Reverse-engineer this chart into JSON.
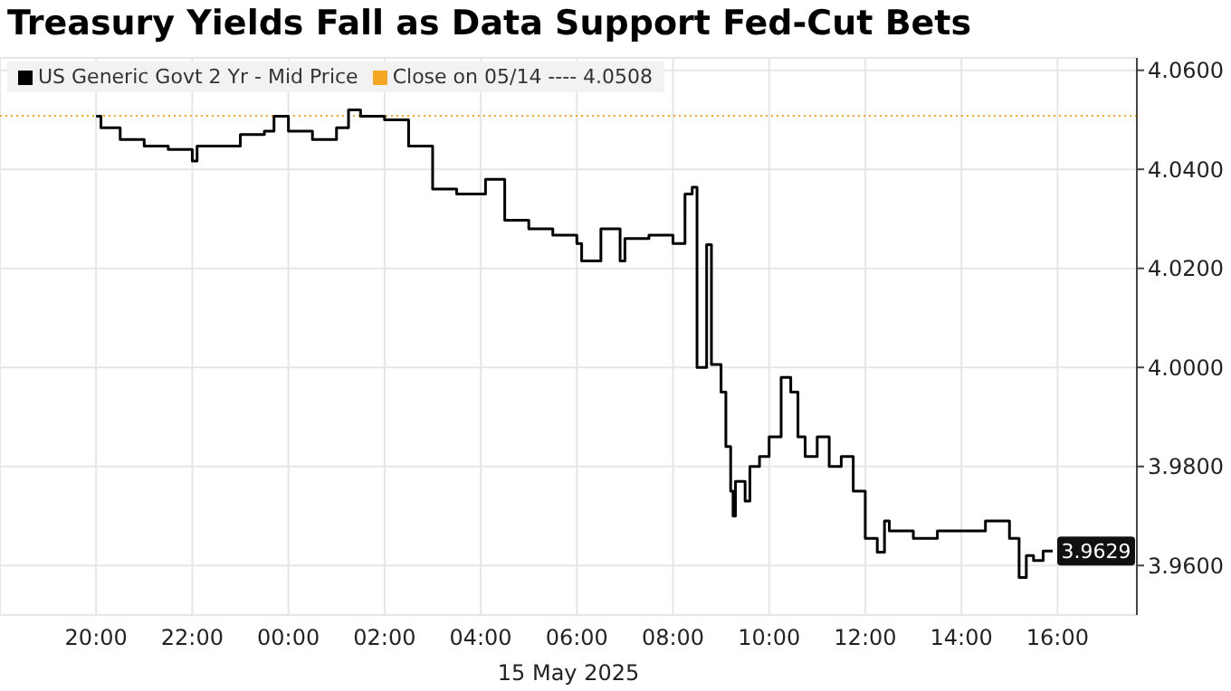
{
  "chart_data": {
    "type": "step",
    "title": "Treasury Yields Fall as Data Support Fed-Cut Bets",
    "xlabel": "15 May 2025",
    "x": [
      "2025-05-14T20:00",
      "2025-05-14T20:06",
      "2025-05-14T20:30",
      "2025-05-14T21:00",
      "2025-05-14T21:30",
      "2025-05-14T22:00",
      "2025-05-14T22:06",
      "2025-05-14T22:30",
      "2025-05-14T23:00",
      "2025-05-14T23:30",
      "2025-05-14T23:42",
      "2025-05-15T00:00",
      "2025-05-15T00:30",
      "2025-05-15T01:00",
      "2025-05-15T01:15",
      "2025-05-15T01:30",
      "2025-05-15T02:00",
      "2025-05-15T02:30",
      "2025-05-15T03:00",
      "2025-05-15T03:30",
      "2025-05-15T04:00",
      "2025-05-15T04:06",
      "2025-05-15T04:30",
      "2025-05-15T05:00",
      "2025-05-15T05:30",
      "2025-05-15T06:00",
      "2025-05-15T06:06",
      "2025-05-15T06:30",
      "2025-05-15T06:54",
      "2025-05-15T07:00",
      "2025-05-15T07:30",
      "2025-05-15T08:00",
      "2025-05-15T08:15",
      "2025-05-15T08:24",
      "2025-05-15T08:30",
      "2025-05-15T08:42",
      "2025-05-15T08:48",
      "2025-05-15T09:00",
      "2025-05-15T09:06",
      "2025-05-15T09:12",
      "2025-05-15T09:15",
      "2025-05-15T09:18",
      "2025-05-15T09:30",
      "2025-05-15T09:36",
      "2025-05-15T09:48",
      "2025-05-15T10:00",
      "2025-05-15T10:15",
      "2025-05-15T10:27",
      "2025-05-15T10:36",
      "2025-05-15T10:45",
      "2025-05-15T11:00",
      "2025-05-15T11:15",
      "2025-05-15T11:30",
      "2025-05-15T11:45",
      "2025-05-15T12:00",
      "2025-05-15T12:15",
      "2025-05-15T12:24",
      "2025-05-15T12:30",
      "2025-05-15T12:45",
      "2025-05-15T13:00",
      "2025-05-15T13:30",
      "2025-05-15T14:00",
      "2025-05-15T14:30",
      "2025-05-15T15:00",
      "2025-05-15T15:12",
      "2025-05-15T15:21",
      "2025-05-15T15:30",
      "2025-05-15T15:42",
      "2025-05-15T15:54"
    ],
    "series": [
      {
        "name": "US Generic Govt 2 Yr - Mid Price",
        "color": "#000000",
        "values": [
          4.0507,
          4.0484,
          4.046,
          4.0447,
          4.044,
          4.0417,
          4.0447,
          4.0447,
          4.047,
          4.0477,
          4.0507,
          4.0477,
          4.046,
          4.0484,
          4.052,
          4.0507,
          4.05,
          4.0447,
          4.036,
          4.035,
          4.035,
          4.038,
          4.0297,
          4.028,
          4.0267,
          4.025,
          4.0215,
          4.028,
          4.0215,
          4.026,
          4.0267,
          4.025,
          4.035,
          4.0364,
          4.0,
          4.0248,
          4.0006,
          3.995,
          3.984,
          3.975,
          3.97,
          3.977,
          3.973,
          3.98,
          3.982,
          3.986,
          3.998,
          3.995,
          3.986,
          3.982,
          3.986,
          3.98,
          3.982,
          3.975,
          3.9655,
          3.9627,
          3.969,
          3.967,
          3.967,
          3.9655,
          3.967,
          3.967,
          3.969,
          3.9655,
          3.9576,
          3.962,
          3.961,
          3.9629,
          3.9629
        ]
      }
    ],
    "ref_lines": [
      {
        "axis": "y",
        "value": 4.0508,
        "label": "Close on 05/14 ---- 4.0508",
        "color": "#f5a623",
        "line_style": "dotted"
      }
    ],
    "annotations": [
      "3.9629"
    ],
    "xlim": [
      "2025-05-14T18:00",
      "2025-05-15T17:39"
    ],
    "xticks": [
      {
        "value": "2025-05-14T20:00",
        "label": "20:00"
      },
      {
        "value": "2025-05-14T22:00",
        "label": "22:00"
      },
      {
        "value": "2025-05-15T00:00",
        "label": "00:00"
      },
      {
        "value": "2025-05-15T02:00",
        "label": "02:00"
      },
      {
        "value": "2025-05-15T04:00",
        "label": "04:00"
      },
      {
        "value": "2025-05-15T06:00",
        "label": "06:00"
      },
      {
        "value": "2025-05-15T08:00",
        "label": "08:00"
      },
      {
        "value": "2025-05-15T10:00",
        "label": "10:00"
      },
      {
        "value": "2025-05-15T12:00",
        "label": "12:00"
      },
      {
        "value": "2025-05-15T14:00",
        "label": "14:00"
      },
      {
        "value": "2025-05-15T16:00",
        "label": "16:00"
      }
    ],
    "ylim": [
      3.95,
      4.0625
    ],
    "yticks": [
      {
        "value": 3.96,
        "label": "3.9600"
      },
      {
        "value": 3.98,
        "label": "3.9800"
      },
      {
        "value": 4.0,
        "label": "4.0000"
      },
      {
        "value": 4.02,
        "label": "4.0200"
      },
      {
        "value": 4.04,
        "label": "4.0400"
      },
      {
        "value": 4.06,
        "label": "4.0600"
      }
    ],
    "grid": true,
    "legend": "top left",
    "marker": "none",
    "line_style": "solid"
  }
}
